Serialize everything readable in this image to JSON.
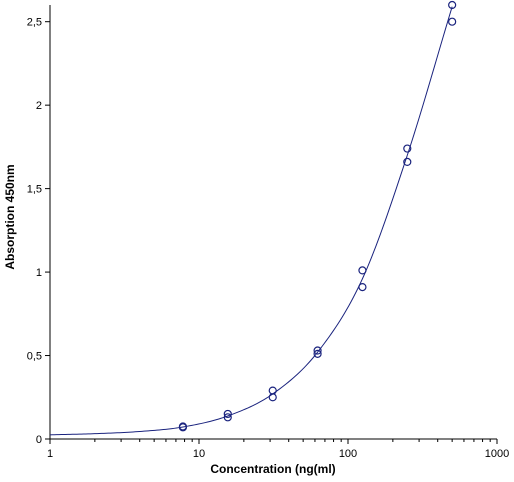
{
  "chart_data": {
    "type": "scatter",
    "xlabel": "Concentration (ng(ml)",
    "ylabel": "Absorption 450nm",
    "x_scale": "log",
    "xlim": [
      1,
      1000
    ],
    "ylim": [
      0,
      2.6
    ],
    "x_ticks": [
      {
        "value": 1,
        "label": "1"
      },
      {
        "value": 10,
        "label": "10"
      },
      {
        "value": 100,
        "label": "100"
      },
      {
        "value": 1000,
        "label": "1000"
      }
    ],
    "y_ticks": [
      {
        "value": 0,
        "label": "0"
      },
      {
        "value": 0.5,
        "label": "0,5"
      },
      {
        "value": 1,
        "label": "1"
      },
      {
        "value": 1.5,
        "label": "1,5"
      },
      {
        "value": 2,
        "label": "2"
      },
      {
        "value": 2.5,
        "label": "2,5"
      }
    ],
    "points": [
      {
        "x": 7.8,
        "y": 0.07
      },
      {
        "x": 7.8,
        "y": 0.075
      },
      {
        "x": 15.6,
        "y": 0.13
      },
      {
        "x": 15.6,
        "y": 0.15
      },
      {
        "x": 31.25,
        "y": 0.25
      },
      {
        "x": 31.25,
        "y": 0.29
      },
      {
        "x": 62.5,
        "y": 0.51
      },
      {
        "x": 62.5,
        "y": 0.53
      },
      {
        "x": 125,
        "y": 0.91
      },
      {
        "x": 125,
        "y": 1.01
      },
      {
        "x": 250,
        "y": 1.66
      },
      {
        "x": 250,
        "y": 1.74
      },
      {
        "x": 500,
        "y": 2.5
      },
      {
        "x": 500,
        "y": 2.6
      }
    ],
    "curve": [
      {
        "x": 1,
        "y": 0.025
      },
      {
        "x": 2,
        "y": 0.032
      },
      {
        "x": 4,
        "y": 0.045
      },
      {
        "x": 7.8,
        "y": 0.072
      },
      {
        "x": 15.6,
        "y": 0.138
      },
      {
        "x": 31.25,
        "y": 0.27
      },
      {
        "x": 62.5,
        "y": 0.52
      },
      {
        "x": 125,
        "y": 0.96
      },
      {
        "x": 250,
        "y": 1.7
      },
      {
        "x": 500,
        "y": 2.59
      }
    ],
    "grid": false,
    "colors": {
      "marker": "#1a237e",
      "curve": "#1a237e",
      "axis": "#000000"
    }
  }
}
